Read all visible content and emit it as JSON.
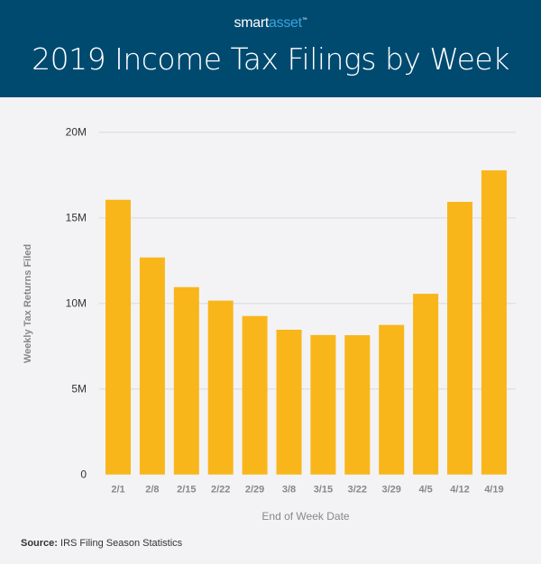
{
  "brand": {
    "part1": "smart",
    "part2": "asset",
    "tm": "™"
  },
  "chart_data": {
    "type": "bar",
    "title": "2019 Income Tax Filings by Week",
    "xlabel": "End of Week Date",
    "ylabel": "Weekly Tax Returns Filed",
    "categories": [
      "2/1",
      "2/8",
      "2/15",
      "2/22",
      "2/29",
      "3/8",
      "3/15",
      "3/22",
      "3/29",
      "4/5",
      "4/12",
      "4/19"
    ],
    "values": [
      16.05,
      12.68,
      10.95,
      10.16,
      9.26,
      8.46,
      8.15,
      8.14,
      8.74,
      10.56,
      15.93,
      17.77
    ],
    "unit": "M",
    "ylim": [
      0,
      20
    ],
    "yticks": [
      {
        "v": 0,
        "label": "0"
      },
      {
        "v": 5,
        "label": "5M"
      },
      {
        "v": 10,
        "label": "10M"
      },
      {
        "v": 15,
        "label": "15M"
      },
      {
        "v": 20,
        "label": "20M"
      }
    ],
    "grid": true,
    "bar_color": "#f9b61b"
  },
  "source": {
    "label": "Source:",
    "text": " IRS Filing Season Statistics"
  }
}
